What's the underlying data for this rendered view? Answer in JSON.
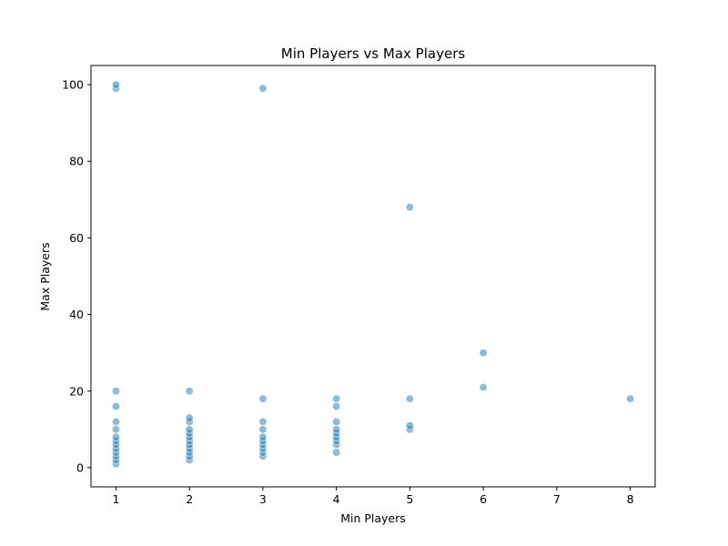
{
  "chart_data": {
    "type": "scatter",
    "title": "Min Players vs Max Players",
    "xlabel": "Min Players",
    "ylabel": "Max Players",
    "xlim": [
      0.66,
      8.34
    ],
    "ylim": [
      -5,
      105
    ],
    "xticks": [
      1,
      2,
      3,
      4,
      5,
      6,
      7,
      8
    ],
    "yticks": [
      0,
      20,
      40,
      60,
      80,
      100
    ],
    "grid": false,
    "marker_color": "#1f77b4",
    "marker_alpha": 0.5,
    "points": [
      [
        1,
        1
      ],
      [
        1,
        2
      ],
      [
        1,
        3
      ],
      [
        1,
        4
      ],
      [
        1,
        5
      ],
      [
        1,
        6
      ],
      [
        1,
        7
      ],
      [
        1,
        8
      ],
      [
        1,
        10
      ],
      [
        1,
        12
      ],
      [
        1,
        16
      ],
      [
        1,
        20
      ],
      [
        1,
        99
      ],
      [
        1,
        100
      ],
      [
        2,
        2
      ],
      [
        2,
        3
      ],
      [
        2,
        4
      ],
      [
        2,
        5
      ],
      [
        2,
        6
      ],
      [
        2,
        7
      ],
      [
        2,
        8
      ],
      [
        2,
        9
      ],
      [
        2,
        10
      ],
      [
        2,
        12
      ],
      [
        2,
        13
      ],
      [
        2,
        20
      ],
      [
        3,
        3
      ],
      [
        3,
        4
      ],
      [
        3,
        5
      ],
      [
        3,
        6
      ],
      [
        3,
        7
      ],
      [
        3,
        8
      ],
      [
        3,
        10
      ],
      [
        3,
        12
      ],
      [
        3,
        18
      ],
      [
        3,
        99
      ],
      [
        4,
        4
      ],
      [
        4,
        6
      ],
      [
        4,
        7
      ],
      [
        4,
        8
      ],
      [
        4,
        9
      ],
      [
        4,
        10
      ],
      [
        4,
        12
      ],
      [
        4,
        16
      ],
      [
        4,
        18
      ],
      [
        5,
        10
      ],
      [
        5,
        11
      ],
      [
        5,
        18
      ],
      [
        5,
        68
      ],
      [
        6,
        21
      ],
      [
        6,
        30
      ],
      [
        8,
        18
      ]
    ]
  }
}
